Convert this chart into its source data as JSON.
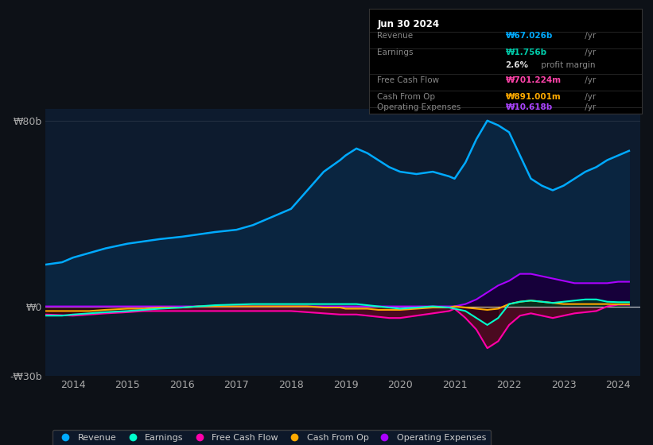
{
  "background_color": "#0d1117",
  "plot_bg_color": "#0d1b2e",
  "ylabel_80": "₩80b",
  "ylabel_0": "₩0",
  "ylabel_neg30": "-₩30b",
  "years": [
    2013.5,
    2013.8,
    2014.0,
    2014.3,
    2014.6,
    2015.0,
    2015.3,
    2015.6,
    2016.0,
    2016.3,
    2016.6,
    2017.0,
    2017.3,
    2017.6,
    2018.0,
    2018.3,
    2018.6,
    2018.9,
    2019.0,
    2019.2,
    2019.4,
    2019.6,
    2019.8,
    2020.0,
    2020.3,
    2020.6,
    2020.9,
    2021.0,
    2021.2,
    2021.4,
    2021.6,
    2021.8,
    2022.0,
    2022.2,
    2022.4,
    2022.6,
    2022.8,
    2023.0,
    2023.2,
    2023.4,
    2023.6,
    2023.8,
    2024.0,
    2024.2
  ],
  "revenue": [
    18,
    19,
    21,
    23,
    25,
    27,
    28,
    29,
    30,
    31,
    32,
    33,
    35,
    38,
    42,
    50,
    58,
    63,
    65,
    68,
    66,
    63,
    60,
    58,
    57,
    58,
    56,
    55,
    62,
    72,
    80,
    78,
    75,
    65,
    55,
    52,
    50,
    52,
    55,
    58,
    60,
    63,
    65,
    67
  ],
  "earnings": [
    -4,
    -4,
    -3.5,
    -3,
    -2.5,
    -2,
    -1.5,
    -1,
    -0.5,
    0,
    0.5,
    0.8,
    1,
    1,
    1,
    1,
    1,
    1,
    1,
    1,
    0.5,
    0,
    -0.5,
    -1,
    -0.5,
    0,
    -0.5,
    -1,
    -2,
    -5,
    -8,
    -5,
    1,
    2,
    2.5,
    2,
    1.5,
    2,
    2.5,
    3,
    3,
    2,
    1.8,
    1.8
  ],
  "free_cash_flow": [
    -3.5,
    -3.8,
    -4,
    -3.5,
    -3,
    -2.5,
    -2,
    -2,
    -2,
    -2,
    -2,
    -2,
    -2,
    -2,
    -2,
    -2.5,
    -3,
    -3.5,
    -3.5,
    -3.5,
    -4,
    -4.5,
    -5,
    -5,
    -4,
    -3,
    -2,
    -1,
    -5,
    -10,
    -18,
    -15,
    -8,
    -4,
    -3,
    -4,
    -5,
    -4,
    -3,
    -2.5,
    -2,
    0,
    0.7,
    0.7
  ],
  "cash_from_op": [
    -2,
    -2,
    -2,
    -2,
    -1.5,
    -1,
    -1,
    -0.5,
    -0.5,
    0,
    0,
    0,
    0,
    0,
    0,
    0,
    -0.5,
    -0.5,
    -1,
    -1,
    -1,
    -1.5,
    -1.5,
    -1.5,
    -1,
    -0.5,
    -0.5,
    0,
    -0.5,
    -1,
    -1.5,
    -1,
    1,
    2,
    2.5,
    2,
    1.5,
    1,
    1,
    1,
    1,
    1,
    0.9,
    0.9
  ],
  "operating_expenses": [
    0,
    0,
    0,
    0,
    0,
    0,
    0,
    0,
    0,
    0,
    0,
    0,
    0,
    0,
    0,
    0,
    0,
    0,
    0,
    0,
    0,
    0,
    0,
    0,
    0,
    0,
    0,
    0,
    1,
    3,
    6,
    9,
    11,
    14,
    14,
    13,
    12,
    11,
    10,
    10,
    10,
    10,
    10.6,
    10.6
  ],
  "revenue_color": "#00aaff",
  "earnings_color": "#00ffcc",
  "fcf_color": "#ff00aa",
  "cfop_color": "#ffaa00",
  "opex_color": "#aa00ff",
  "info_box": {
    "date": "Jun 30 2024",
    "revenue_val": "₩67.026b /yr",
    "earnings_val": "₩1.756b /yr",
    "margin_pct": "2.6%",
    "margin_label": " profit margin",
    "fcf_val": "₩701.224m /yr",
    "cfop_val": "₩891.001m /yr",
    "opex_val": "₩10.618b /yr"
  }
}
